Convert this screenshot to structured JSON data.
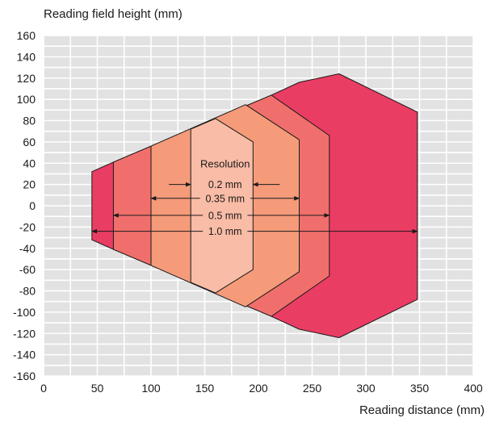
{
  "chart_data": {
    "type": "area",
    "xlabel": "Reading distance (mm)",
    "ylabel": "Reading field height (mm)",
    "xlim": [
      0,
      400
    ],
    "ylim": [
      -160,
      160
    ],
    "x_ticks": [
      "0",
      "50",
      "100",
      "150",
      "200",
      "250",
      "300",
      "350",
      "400"
    ],
    "y_ticks": [
      "160",
      "140",
      "120",
      "100",
      "80",
      "60",
      "40",
      "20",
      "0",
      "-20",
      "-40",
      "-60",
      "-80",
      "-100",
      "-120",
      "-140",
      "-160"
    ],
    "grid": true,
    "legend_title": "Resolution",
    "series": [
      {
        "name": "1.0 mm",
        "color": "#ea3d63",
        "points": [
          [
            45,
            32
          ],
          [
            65,
            41
          ],
          [
            212,
            104
          ],
          [
            238,
            116
          ],
          [
            275,
            124
          ],
          [
            348,
            88
          ],
          [
            348,
            -88
          ],
          [
            275,
            -124
          ],
          [
            238,
            -116
          ],
          [
            212,
            -104
          ],
          [
            65,
            -41
          ],
          [
            45,
            -32
          ]
        ],
        "range": [
          45,
          348
        ]
      },
      {
        "name": "0.5 mm",
        "color": "#f06f6c",
        "points": [
          [
            65,
            41
          ],
          [
            212,
            104
          ],
          [
            266,
            66
          ],
          [
            266,
            -66
          ],
          [
            212,
            -104
          ],
          [
            65,
            -41
          ]
        ],
        "range": [
          65,
          266
        ]
      },
      {
        "name": "0.35 mm",
        "color": "#f59b7a",
        "points": [
          [
            100,
            56
          ],
          [
            188,
            95
          ],
          [
            238,
            62
          ],
          [
            238,
            -62
          ],
          [
            188,
            -95
          ],
          [
            100,
            -56
          ]
        ],
        "range": [
          100,
          238
        ]
      },
      {
        "name": "0.2 mm",
        "color": "#f9bca6",
        "points": [
          [
            137,
            72
          ],
          [
            160,
            82
          ],
          [
            195,
            60
          ],
          [
            195,
            -60
          ],
          [
            160,
            -82
          ],
          [
            137,
            -72
          ]
        ],
        "range": [
          137,
          195
        ]
      }
    ]
  }
}
